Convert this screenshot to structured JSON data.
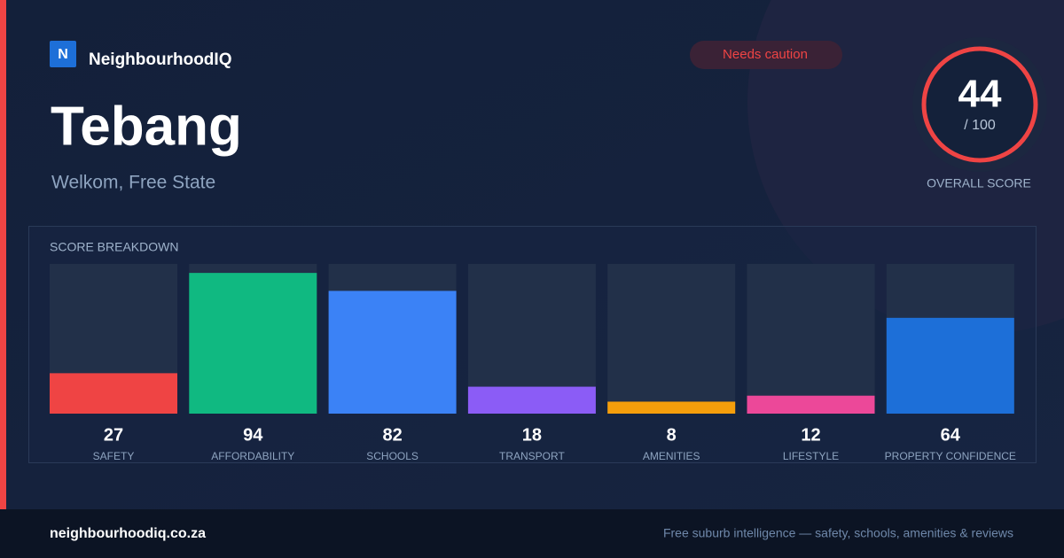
{
  "brand": {
    "logo": "N",
    "name": "NeighbourhoodIQ"
  },
  "badge": "Needs caution",
  "title": "Tebang",
  "subtitle": "Welkom, Free State",
  "score": {
    "value": 44,
    "max": "/ 100",
    "label": "OVERALL SCORE",
    "color": "#ef4444"
  },
  "breakdown": {
    "title": "SCORE BREAKDOWN",
    "ylim": [
      0,
      100
    ],
    "items": [
      {
        "label": "SAFETY",
        "value": 27,
        "color": "#ef4444"
      },
      {
        "label": "AFFORDABILITY",
        "value": 94,
        "color": "#10b981"
      },
      {
        "label": "SCHOOLS",
        "value": 82,
        "color": "#3b82f6"
      },
      {
        "label": "TRANSPORT",
        "value": 18,
        "color": "#8b5cf6"
      },
      {
        "label": "AMENITIES",
        "value": 8,
        "color": "#f59e0b"
      },
      {
        "label": "LIFESTYLE",
        "value": 12,
        "color": "#ec4899"
      },
      {
        "label": "PROPERTY CONFIDENCE",
        "value": 64,
        "color": "#1d6fd8"
      }
    ]
  },
  "footer": {
    "domain": "neighbourhoodiq.co.za",
    "tagline": "Free suburb intelligence — safety, schools, amenities & reviews"
  }
}
